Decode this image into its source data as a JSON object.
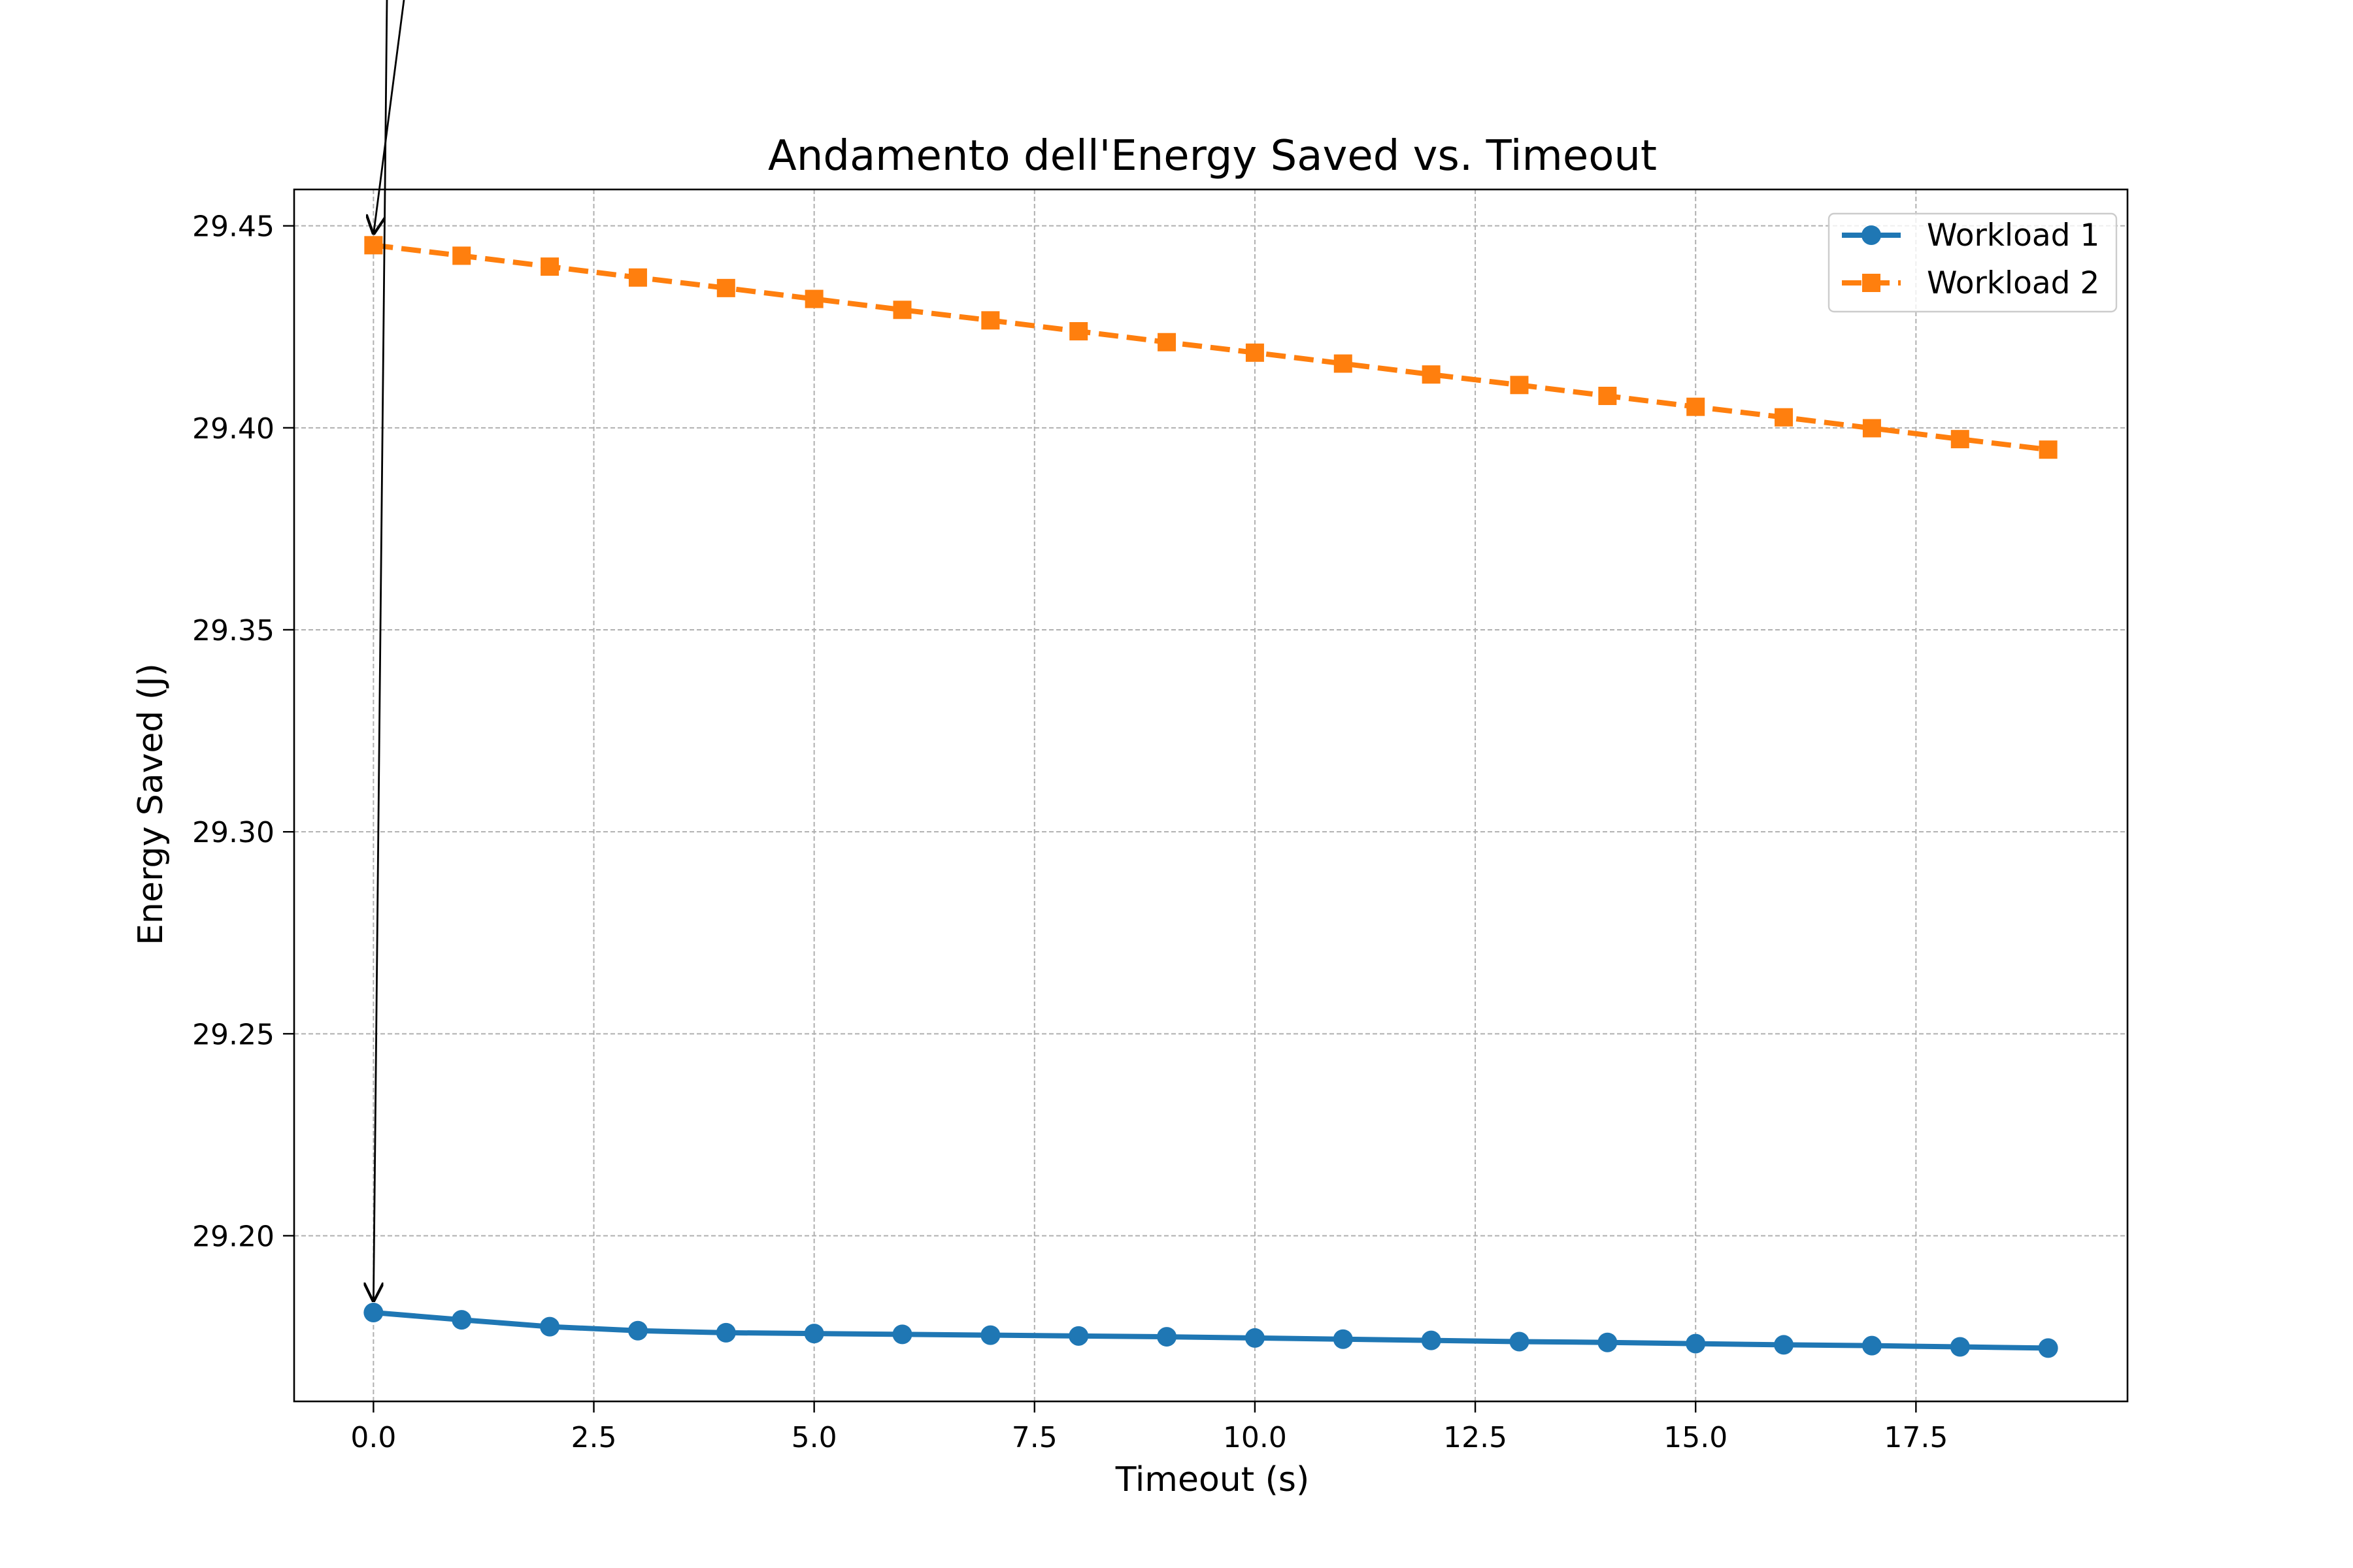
{
  "chart_data": {
    "type": "line",
    "title": "Andamento dell'Energy Saved vs. Timeout",
    "xlabel": "Timeout (s)",
    "ylabel": "Energy Saved (J)",
    "xlim": [
      -0.9,
      19.9
    ],
    "ylim": [
      29.159,
      29.459
    ],
    "x_ticks": [
      0.0,
      2.5,
      5.0,
      7.5,
      10.0,
      12.5,
      15.0,
      17.5
    ],
    "x_tick_labels": [
      "0.0",
      "2.5",
      "5.0",
      "7.5",
      "10.0",
      "12.5",
      "15.0",
      "17.5"
    ],
    "y_ticks": [
      29.2,
      29.25,
      29.3,
      29.35,
      29.4,
      29.45
    ],
    "y_tick_labels": [
      "29.20",
      "29.25",
      "29.30",
      "29.35",
      "29.40",
      "29.45"
    ],
    "grid": true,
    "legend_position": "top-right",
    "x": [
      0,
      1,
      2,
      3,
      4,
      5,
      6,
      7,
      8,
      9,
      10,
      11,
      12,
      13,
      14,
      15,
      16,
      17,
      18,
      19
    ],
    "series": [
      {
        "name": "Workload 1",
        "color": "#1f77b4",
        "marker": "circle",
        "linestyle": "solid",
        "values": [
          29.181,
          29.1792,
          29.1775,
          29.1765,
          29.176,
          29.1758,
          29.1756,
          29.1754,
          29.1752,
          29.175,
          29.1747,
          29.1744,
          29.1741,
          29.1738,
          29.1736,
          29.1733,
          29.173,
          29.1728,
          29.1725,
          29.1722
        ]
      },
      {
        "name": "Workload 2",
        "color": "#ff7f0e",
        "marker": "square",
        "linestyle": "dashed",
        "values": [
          29.4452,
          29.4426,
          29.4399,
          29.4372,
          29.4346,
          29.4319,
          29.4292,
          29.4266,
          29.4239,
          29.4212,
          29.4186,
          29.4159,
          29.4132,
          29.4106,
          29.4079,
          29.4052,
          29.4026,
          29.3999,
          29.3972,
          29.3946
        ]
      }
    ],
    "annotations": [
      {
        "type": "arrow",
        "points_to_x": 0,
        "points_to_series": 0
      },
      {
        "type": "arrow",
        "points_to_x": 0,
        "points_to_series": 1
      }
    ]
  }
}
